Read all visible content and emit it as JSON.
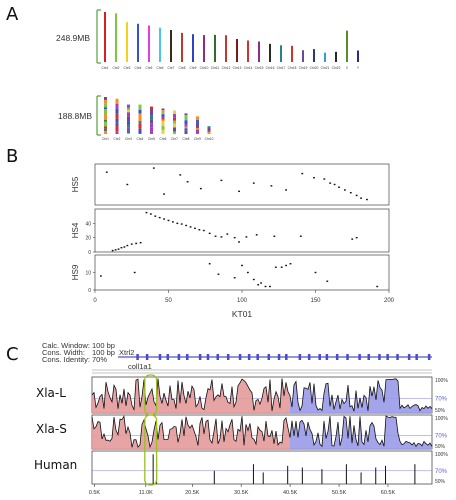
{
  "panels": {
    "a": "A",
    "b": "B",
    "c": "C"
  },
  "panel_a": {
    "size_top": "248.9MB",
    "size_bottom": "188.8MB",
    "top_chrom_labels": [
      "Chr1",
      "Chr2",
      "Chr3",
      "Chr4",
      "Chr5",
      "Chr6",
      "Chr7",
      "Chr8",
      "Chr9",
      "Chr10",
      "Chr11",
      "Chr12",
      "Chr13",
      "Chr14",
      "Chr15",
      "Chr16",
      "Chr17",
      "Chr18",
      "Chr19",
      "Chr20",
      "Chr21",
      "Chr22",
      "X",
      "Y"
    ],
    "top_lengths": [
      248.9,
      242.2,
      198.3,
      190.2,
      181.5,
      170.8,
      159.3,
      145.1,
      138.4,
      133.8,
      135.1,
      133.3,
      114.4,
      107.0,
      102.0,
      90.3,
      83.3,
      80.4,
      58.6,
      64.4,
      46.7,
      50.8,
      156.0,
      57.2
    ],
    "top_colors": [
      "#d42020",
      "#7ac943",
      "#f2d21a",
      "#3355cc",
      "#e43ee0",
      "#4cc6e6",
      "#3a2a1e",
      "#c0392b",
      "#2e43c0",
      "#8a2c8f",
      "#2c6e2c",
      "#c0392b",
      "#7a1a1a",
      "#d43030",
      "#8a2c8f",
      "#2a2a2a",
      "#2e7d8f",
      "#d43030",
      "#6a4a9a",
      "#2a3a7a",
      "#3a9ad9",
      "#2a2a2a",
      "#5a8a2a",
      "#2a2a8a"
    ],
    "bottom_chrom_labels": [
      "Chr1",
      "Chr2",
      "Chr3",
      "Chr4",
      "Chr5",
      "Chr6",
      "Chr7",
      "Chr8",
      "Chr9",
      "Chr10"
    ],
    "bottom_lengths": [
      188.8,
      180.0,
      150.0,
      150.0,
      140.0,
      130.0,
      120.0,
      105.0,
      90.0,
      40.0
    ],
    "bottom_colors": [
      "#e8d040",
      "#3355cc",
      "#d43030",
      "#7ac943",
      "#a040c0",
      "#2e7d8f",
      "#d43030",
      "#8a2c8f",
      "#3355cc",
      "#2a6ab0"
    ]
  },
  "chart_data": [
    {
      "type": "scatter",
      "title": "",
      "xlabel": "KT01",
      "x_ticks": [
        0,
        50,
        100,
        150,
        200
      ],
      "xlim": [
        0,
        200
      ],
      "rows": [
        {
          "name": "HS5",
          "ylim": [
            0,
            30
          ],
          "y_ticks": [],
          "points": [
            [
              8,
              24
            ],
            [
              22,
              15
            ],
            [
              40,
              27
            ],
            [
              47,
              8
            ],
            [
              58,
              22
            ],
            [
              63,
              17
            ],
            [
              72,
              12
            ],
            [
              86,
              18
            ],
            [
              98,
              10
            ],
            [
              108,
              16
            ],
            [
              120,
              14
            ],
            [
              130,
              11
            ],
            [
              141,
              23
            ],
            [
              149,
              20
            ],
            [
              156,
              19
            ],
            [
              160,
              16
            ],
            [
              163,
              15
            ],
            [
              166,
              13
            ],
            [
              170,
              11
            ],
            [
              174,
              9
            ],
            [
              178,
              7
            ],
            [
              181,
              5
            ],
            [
              185,
              4
            ]
          ]
        },
        {
          "name": "HS4",
          "ylim": [
            0,
            60
          ],
          "y_ticks": [
            0,
            20,
            40
          ],
          "points": [
            [
              12,
              2
            ],
            [
              14,
              3
            ],
            [
              16,
              4
            ],
            [
              18,
              6
            ],
            [
              20,
              7
            ],
            [
              22,
              9
            ],
            [
              25,
              11
            ],
            [
              28,
              12
            ],
            [
              31,
              13
            ],
            [
              35,
              55
            ],
            [
              38,
              53
            ],
            [
              41,
              50
            ],
            [
              44,
              48
            ],
            [
              47,
              46
            ],
            [
              50,
              44
            ],
            [
              53,
              42
            ],
            [
              56,
              40
            ],
            [
              59,
              39
            ],
            [
              62,
              37
            ],
            [
              65,
              35
            ],
            [
              68,
              33
            ],
            [
              71,
              31
            ],
            [
              74,
              30
            ],
            [
              78,
              26
            ],
            [
              82,
              22
            ],
            [
              86,
              21
            ],
            [
              90,
              25
            ],
            [
              95,
              20
            ],
            [
              98,
              14
            ],
            [
              103,
              21
            ],
            [
              110,
              24
            ],
            [
              122,
              22
            ],
            [
              140,
              22
            ],
            [
              175,
              18
            ],
            [
              178,
              20
            ]
          ]
        },
        {
          "name": "HS9",
          "ylim": [
            0,
            20
          ],
          "y_ticks": [
            0,
            10
          ],
          "points": [
            [
              4,
              8
            ],
            [
              27,
              10
            ],
            [
              78,
              15
            ],
            [
              84,
              9
            ],
            [
              95,
              7
            ],
            [
              100,
              14
            ],
            [
              104,
              10
            ],
            [
              108,
              6
            ],
            [
              111,
              3
            ],
            [
              113,
              4
            ],
            [
              116,
              2
            ],
            [
              119,
              2
            ],
            [
              123,
              13
            ],
            [
              127,
              13
            ],
            [
              130,
              14
            ],
            [
              133,
              15
            ],
            [
              150,
              10
            ],
            [
              158,
              5
            ],
            [
              192,
              2
            ]
          ]
        }
      ]
    },
    {
      "type": "area",
      "title": "",
      "settings": [
        {
          "label": "Calc. Window:",
          "value": "100 bp"
        },
        {
          "label": "Cons. Width:",
          "value": "100 bp"
        },
        {
          "label": "Cons. Identity:",
          "value": "70%"
        }
      ],
      "genes": [
        "Xtrl2",
        "coll1a1"
      ],
      "x_ticks": [
        "0.5K",
        "11.0K",
        "20.5K",
        "30.5K",
        "40.5K",
        "50.5K",
        "60.5K"
      ],
      "xlim": [
        0,
        69.5
      ],
      "right_scale": [
        "100%",
        "70%",
        "50%"
      ],
      "tracks": [
        {
          "name": "Xla-L",
          "dense": true,
          "seed": 7
        },
        {
          "name": "Xla-S",
          "dense": true,
          "seed": 19
        },
        {
          "name": "Human",
          "dense": false,
          "seed": 31
        }
      ],
      "highlight_x": [
        11.0,
        13.0
      ]
    }
  ]
}
